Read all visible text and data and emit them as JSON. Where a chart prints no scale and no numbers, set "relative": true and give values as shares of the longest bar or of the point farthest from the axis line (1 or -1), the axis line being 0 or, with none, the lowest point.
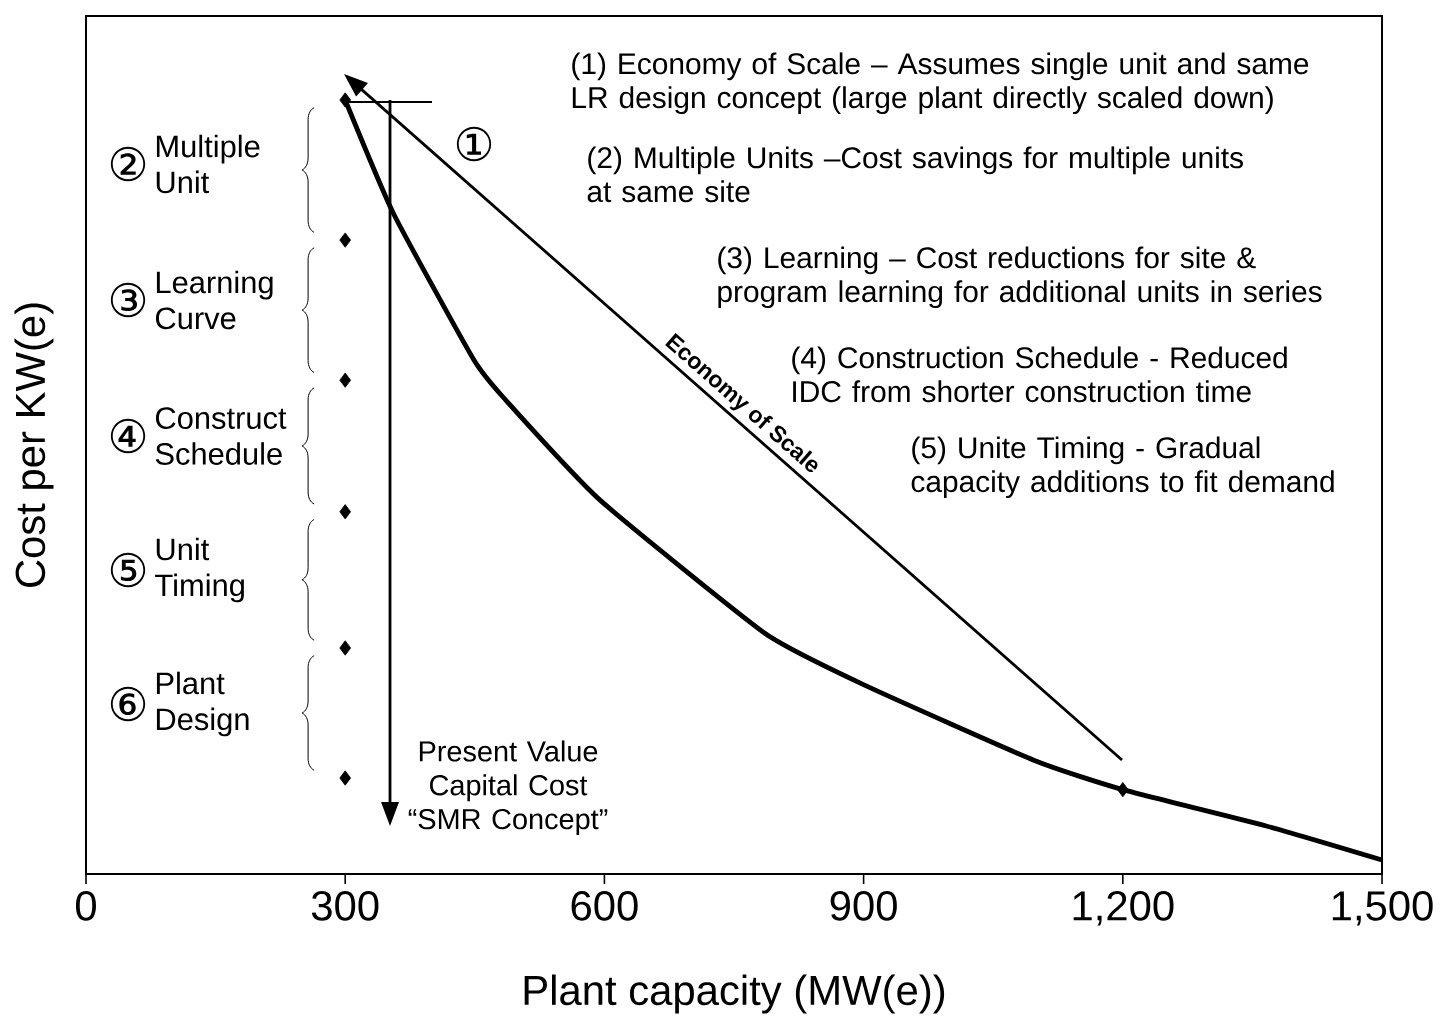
{
  "chart_data": {
    "type": "line",
    "relative": true,
    "xlabel": "Plant capacity (MW(e))",
    "ylabel": "Cost per KW(e)",
    "xlim": [
      0,
      1500
    ],
    "xticks": [
      0,
      {
        "value": 300,
        "label": "300"
      },
      {
        "value": 600,
        "label": "600"
      },
      {
        "value": 900,
        "label": "900"
      },
      {
        "value": 1200,
        "label": "1,200"
      },
      {
        "value": 1500,
        "label": "1,500"
      }
    ],
    "tick_labels": "x",
    "grid": false,
    "series": [
      {
        "marker": "none",
        "color": "#000000",
        "x": [
          300,
          356,
          449,
          486,
          595,
          787,
          903,
          1097,
          1200,
          1366,
          1500
        ],
        "values": [
          1,
          0.853,
          0.664,
          0.612,
          0.483,
          0.31,
          0.243,
          0.147,
          0.109,
          0.062,
          0.018
        ]
      },
      {
        "type": "scatter",
        "marker": "diamond",
        "color": "#000000",
        "x": [
          300,
          300,
          300,
          300,
          300,
          300,
          1200
        ],
        "values": [
          1,
          0.819,
          0.638,
          0.468,
          0.292,
          0.124,
          0.109
        ]
      }
    ],
    "annotations": [
      "(1) Economy of Scale – Assumes single unit and same LR design concept (large plant directly scaled down)",
      "(2) Multiple Units –Cost savings for multiple units at same site",
      "(3) Learning – Cost reductions for site & program learning for additional units in series",
      "(4) Construction Schedule - Reduced IDC from shorter construction time",
      "(5) Unite Timing - Gradual capacity additions to fit demand",
      "①",
      "②",
      "Multiple Unit",
      "③",
      "Learning Curve",
      "④",
      "Construct Schedule",
      "⑤",
      "Unit Timing",
      "⑥",
      "Plant Design",
      "Present Value Capital Cost “SMR Concept”",
      "Economy of Scale"
    ]
  }
}
